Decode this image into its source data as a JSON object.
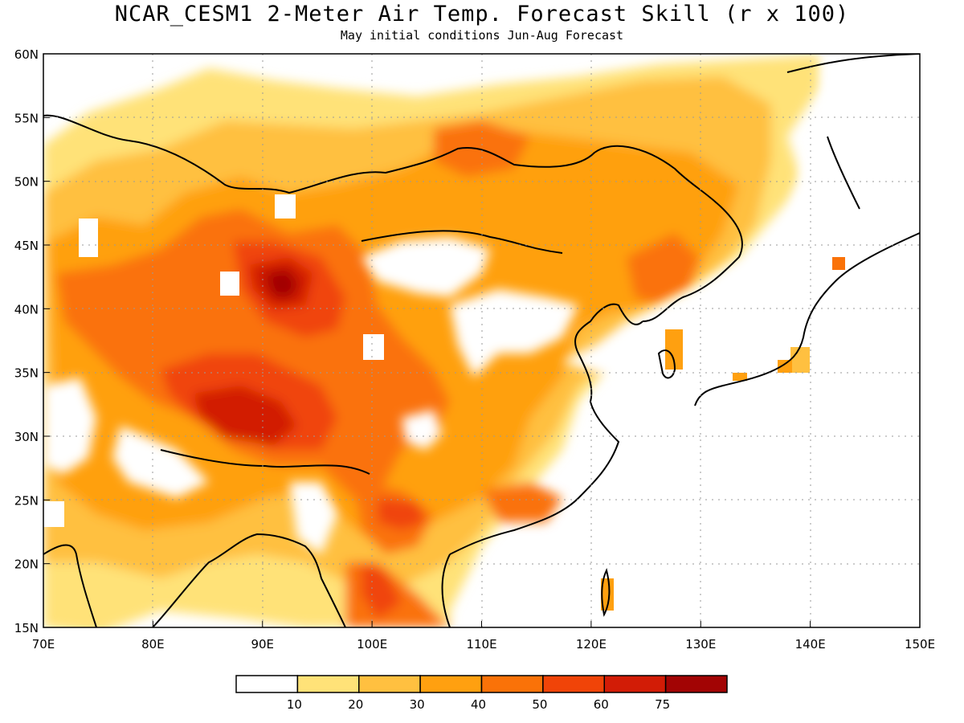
{
  "header": {
    "title": "NCAR_CESM1 2-Meter Air Temp. Forecast Skill (r x 100)",
    "subtitle": "May initial conditions  Jun-Aug Forecast"
  },
  "map": {
    "lon_range": [
      70,
      150
    ],
    "lat_range": [
      15,
      60
    ],
    "lon_ticks": [
      "70E",
      "80E",
      "90E",
      "100E",
      "110E",
      "120E",
      "130E",
      "140E",
      "150E"
    ],
    "lat_ticks": [
      "15N",
      "20N",
      "25N",
      "30N",
      "35N",
      "40N",
      "45N",
      "50N",
      "55N",
      "60N"
    ],
    "grid": "dotted"
  },
  "colorbar": {
    "labels": [
      "10",
      "20",
      "30",
      "40",
      "50",
      "60",
      "75"
    ],
    "colors": [
      "#ffffff",
      "#ffe278",
      "#ffc040",
      "#ffa010",
      "#fa7208",
      "#f04408",
      "#d21c06",
      "#a20404"
    ]
  },
  "skill_field": {
    "note_units": "r x 100",
    "regions": [
      {
        "lon": 72,
        "lat": 50,
        "value": 15
      },
      {
        "lon": 80,
        "lat": 55,
        "value": 20
      },
      {
        "lon": 95,
        "lat": 52,
        "value": 25
      },
      {
        "lon": 112,
        "lat": 53,
        "value": 40
      },
      {
        "lon": 120,
        "lat": 50,
        "value": 35
      },
      {
        "lon": 127,
        "lat": 44,
        "value": 50
      },
      {
        "lon": 91,
        "lat": 42,
        "value": 65
      },
      {
        "lon": 88,
        "lat": 32,
        "value": 65
      },
      {
        "lon": 102,
        "lat": 24,
        "value": 55
      },
      {
        "lon": 100,
        "lat": 18,
        "value": 50
      },
      {
        "lon": 106,
        "lat": 43,
        "value": 5
      },
      {
        "lon": 120,
        "lat": 35,
        "value": 0
      }
    ]
  }
}
